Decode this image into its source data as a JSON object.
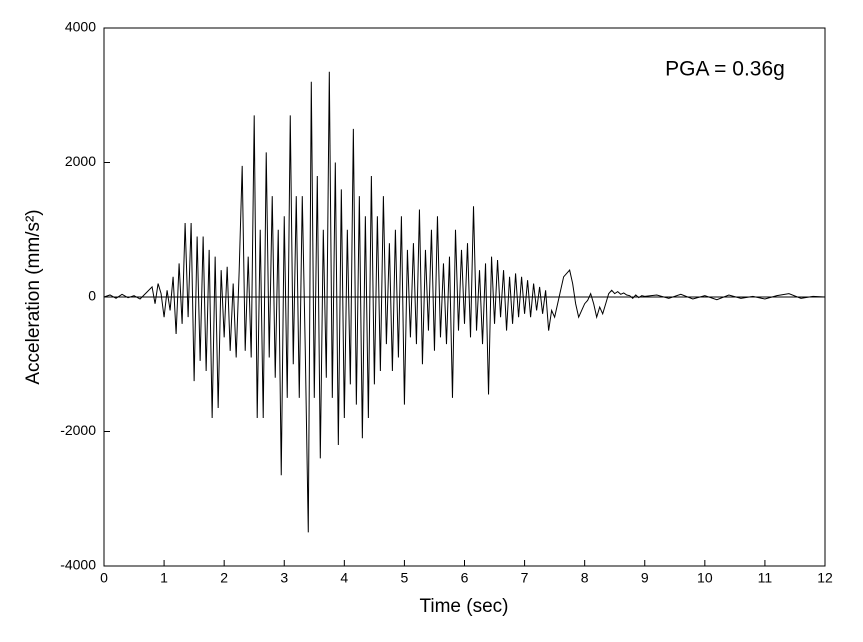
{
  "chart_data": {
    "type": "line",
    "annotation": "PGA = 0.36g",
    "xlabel": "Time (sec)",
    "ylabel": "Acceleration (mm/s²)",
    "color": "#000000",
    "xlim": [
      0,
      12
    ],
    "xticks": [
      0,
      1,
      2,
      3,
      4,
      5,
      6,
      7,
      8,
      9,
      10,
      11,
      12
    ],
    "ylim": [
      -4000,
      4000
    ],
    "yticks": [
      -4000,
      -2000,
      0,
      2000,
      4000
    ],
    "x": [
      0,
      0.1,
      0.2,
      0.3,
      0.4,
      0.5,
      0.6,
      0.7,
      0.8,
      0.85,
      0.9,
      0.95,
      1.0,
      1.05,
      1.1,
      1.15,
      1.2,
      1.25,
      1.3,
      1.35,
      1.4,
      1.45,
      1.5,
      1.55,
      1.6,
      1.65,
      1.7,
      1.75,
      1.8,
      1.85,
      1.9,
      1.95,
      2.0,
      2.05,
      2.1,
      2.15,
      2.2,
      2.25,
      2.3,
      2.35,
      2.4,
      2.45,
      2.5,
      2.55,
      2.6,
      2.65,
      2.7,
      2.75,
      2.8,
      2.85,
      2.9,
      2.95,
      3.0,
      3.05,
      3.1,
      3.15,
      3.2,
      3.25,
      3.3,
      3.35,
      3.4,
      3.45,
      3.5,
      3.55,
      3.6,
      3.65,
      3.7,
      3.75,
      3.8,
      3.85,
      3.9,
      3.95,
      4.0,
      4.05,
      4.1,
      4.15,
      4.2,
      4.25,
      4.3,
      4.35,
      4.4,
      4.45,
      4.5,
      4.55,
      4.6,
      4.65,
      4.7,
      4.75,
      4.8,
      4.85,
      4.9,
      4.95,
      5.0,
      5.05,
      5.1,
      5.15,
      5.2,
      5.25,
      5.3,
      5.35,
      5.4,
      5.45,
      5.5,
      5.55,
      5.6,
      5.65,
      5.7,
      5.75,
      5.8,
      5.85,
      5.9,
      5.95,
      6.0,
      6.05,
      6.1,
      6.15,
      6.2,
      6.25,
      6.3,
      6.35,
      6.4,
      6.45,
      6.5,
      6.55,
      6.6,
      6.65,
      6.7,
      6.75,
      6.8,
      6.85,
      6.9,
      6.95,
      7.0,
      7.05,
      7.1,
      7.15,
      7.2,
      7.25,
      7.3,
      7.35,
      7.4,
      7.45,
      7.5,
      7.55,
      7.6,
      7.65,
      7.7,
      7.75,
      7.8,
      7.85,
      7.9,
      7.95,
      8.0,
      8.05,
      8.1,
      8.15,
      8.2,
      8.25,
      8.3,
      8.35,
      8.4,
      8.45,
      8.5,
      8.55,
      8.6,
      8.65,
      8.7,
      8.75,
      8.8,
      8.85,
      8.9,
      8.95,
      9.0,
      9.2,
      9.4,
      9.6,
      9.8,
      10.0,
      10.2,
      10.4,
      10.6,
      10.8,
      11.0,
      11.2,
      11.4,
      11.6,
      11.8,
      12.0
    ],
    "values": [
      0,
      30,
      -20,
      40,
      -10,
      20,
      -30,
      60,
      150,
      -100,
      200,
      50,
      -300,
      100,
      -200,
      300,
      -550,
      500,
      -400,
      1100,
      -300,
      1100,
      -1250,
      900,
      -950,
      900,
      -1100,
      700,
      -1800,
      600,
      -1650,
      400,
      -600,
      450,
      -800,
      200,
      -900,
      400,
      1950,
      -800,
      600,
      -900,
      2700,
      -1800,
      1000,
      -1800,
      2150,
      -900,
      1500,
      -1200,
      1000,
      -2650,
      1200,
      -1500,
      2700,
      -1000,
      1500,
      -1500,
      1500,
      -800,
      -3500,
      3200,
      -1500,
      1800,
      -2400,
      1000,
      -1200,
      3350,
      -1500,
      2000,
      -2200,
      1600,
      -1800,
      1000,
      -1300,
      2500,
      -1600,
      1500,
      -2100,
      1200,
      -1800,
      1800,
      -1300,
      1200,
      -1100,
      1500,
      -700,
      800,
      -1100,
      1000,
      -900,
      1200,
      -1600,
      700,
      -600,
      800,
      -700,
      1300,
      -1000,
      700,
      -500,
      1000,
      -800,
      1200,
      -600,
      500,
      -700,
      600,
      -1500,
      1000,
      -500,
      700,
      -400,
      800,
      -600,
      1350,
      -500,
      400,
      -700,
      500,
      -1450,
      600,
      -400,
      550,
      -300,
      400,
      -500,
      300,
      -400,
      350,
      -300,
      300,
      -250,
      250,
      -300,
      200,
      -200,
      150,
      -250,
      100,
      -500,
      -200,
      -300,
      -100,
      100,
      300,
      350,
      400,
      200,
      -100,
      -300,
      -200,
      -100,
      -50,
      50,
      -100,
      -300,
      -150,
      -250,
      -100,
      50,
      100,
      50,
      80,
      40,
      60,
      30,
      20,
      -20,
      30,
      -10,
      20,
      10,
      30,
      -20,
      40,
      -30,
      20,
      -40,
      30,
      -20,
      10,
      -30,
      20,
      50,
      -20,
      10,
      0
    ]
  }
}
